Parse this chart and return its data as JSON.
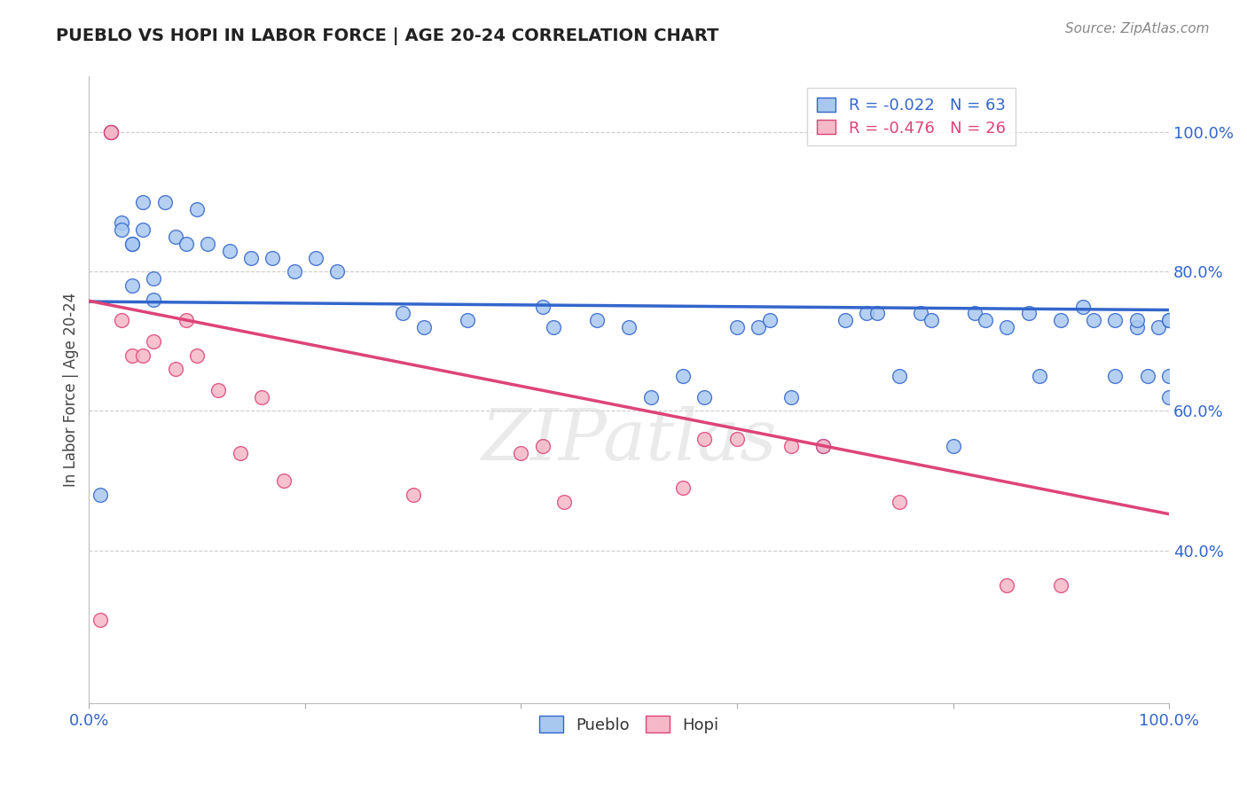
{
  "title": "PUEBLO VS HOPI IN LABOR FORCE | AGE 20-24 CORRELATION CHART",
  "source_text": "Source: ZipAtlas.com",
  "ylabel": "In Labor Force | Age 20-24",
  "xlim": [
    0.0,
    1.0
  ],
  "ylim": [
    0.18,
    1.08
  ],
  "blue_label": "Pueblo",
  "pink_label": "Hopi",
  "blue_R": -0.022,
  "blue_N": 63,
  "pink_R": -0.476,
  "pink_N": 26,
  "blue_color": "#A8C8F0",
  "pink_color": "#F5B8C8",
  "blue_line_color": "#3366CC",
  "pink_line_color": "#DD4477",
  "yticks": [
    0.4,
    0.6,
    0.8,
    1.0
  ],
  "ytick_labels": [
    "40.0%",
    "60.0%",
    "80.0%",
    "100.0%"
  ],
  "xtick_positions": [
    0.0,
    0.2,
    0.4,
    0.6,
    0.8,
    1.0
  ],
  "xtick_labels": [
    "0.0%",
    "",
    "",
    "",
    "",
    "100.0%"
  ],
  "blue_x": [
    0.01,
    0.02,
    0.02,
    0.03,
    0.03,
    0.04,
    0.04,
    0.04,
    0.05,
    0.05,
    0.06,
    0.06,
    0.07,
    0.08,
    0.09,
    0.1,
    0.11,
    0.13,
    0.15,
    0.17,
    0.19,
    0.21,
    0.23,
    0.29,
    0.31,
    0.35,
    0.42,
    0.43,
    0.47,
    0.5,
    0.52,
    0.55,
    0.57,
    0.6,
    0.62,
    0.63,
    0.65,
    0.68,
    0.7,
    0.72,
    0.73,
    0.75,
    0.77,
    0.78,
    0.8,
    0.82,
    0.83,
    0.85,
    0.87,
    0.88,
    0.9,
    0.92,
    0.93,
    0.95,
    0.95,
    0.97,
    0.97,
    0.98,
    0.99,
    1.0,
    1.0,
    1.0,
    1.0
  ],
  "blue_y": [
    0.48,
    1.0,
    1.0,
    0.87,
    0.86,
    0.84,
    0.84,
    0.78,
    0.9,
    0.86,
    0.76,
    0.79,
    0.9,
    0.85,
    0.84,
    0.89,
    0.84,
    0.83,
    0.82,
    0.82,
    0.8,
    0.82,
    0.8,
    0.74,
    0.72,
    0.73,
    0.75,
    0.72,
    0.73,
    0.72,
    0.62,
    0.65,
    0.62,
    0.72,
    0.72,
    0.73,
    0.62,
    0.55,
    0.73,
    0.74,
    0.74,
    0.65,
    0.74,
    0.73,
    0.55,
    0.74,
    0.73,
    0.72,
    0.74,
    0.65,
    0.73,
    0.75,
    0.73,
    0.65,
    0.73,
    0.72,
    0.73,
    0.65,
    0.72,
    0.73,
    0.62,
    0.73,
    0.65
  ],
  "pink_x": [
    0.01,
    0.02,
    0.02,
    0.03,
    0.04,
    0.05,
    0.06,
    0.08,
    0.09,
    0.1,
    0.12,
    0.14,
    0.16,
    0.18,
    0.3,
    0.4,
    0.42,
    0.44,
    0.55,
    0.57,
    0.6,
    0.65,
    0.68,
    0.75,
    0.85,
    0.9
  ],
  "pink_y": [
    0.3,
    1.0,
    1.0,
    0.73,
    0.68,
    0.68,
    0.7,
    0.66,
    0.73,
    0.68,
    0.63,
    0.54,
    0.62,
    0.5,
    0.48,
    0.54,
    0.55,
    0.47,
    0.49,
    0.56,
    0.56,
    0.55,
    0.55,
    0.47,
    0.35,
    0.35
  ],
  "blue_trend_y0": 0.757,
  "blue_trend_y1": 0.745,
  "pink_trend_y0": 0.758,
  "pink_trend_y1": 0.452,
  "watermark": "ZIPatlas",
  "background_color": "#FFFFFF",
  "grid_color": "#CCCCCC"
}
